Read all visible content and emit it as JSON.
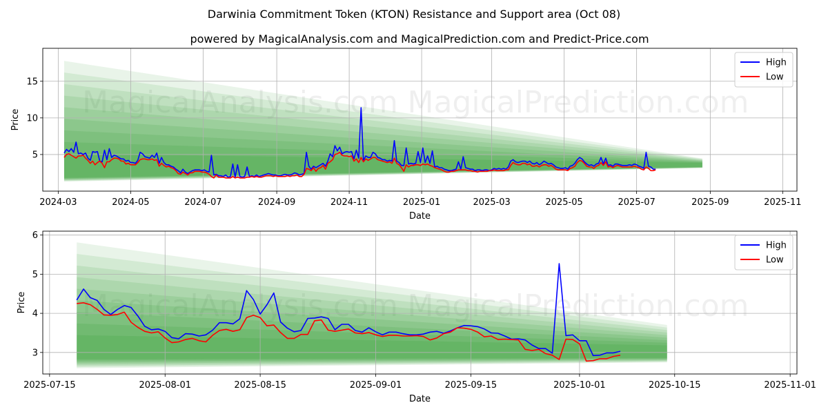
{
  "title": "Darwinia Commitment Token (KTON) Resistance and Support area (Oct 08)",
  "subtitle": "powered by MagicalAnalysis.com and MagicalPrediction.com and Predict-Price.com",
  "watermark": {
    "top_left": "MagicalAnalysis.com",
    "top_right": "MagicalPrediction.com",
    "bottom_left": "MagicalAnalysis.com",
    "bottom_right": "MagicalPrediction.com"
  },
  "colors": {
    "high": "#0000ff",
    "low": "#ff0000",
    "band": "#2e9b2e",
    "grid": "#b0b0b0"
  },
  "chart_data": [
    {
      "type": "line",
      "title": "",
      "xlabel": "Date",
      "ylabel": "Price",
      "legend": [
        "High",
        "Low"
      ],
      "legend_position": "top-right",
      "grid": true,
      "x_start": "2024-03-06",
      "x_step_days": 2,
      "x_range": [
        "2024-02-17",
        "2025-11-13"
      ],
      "ylim": [
        0,
        19.5
      ],
      "x_ticks": [
        "2024-03",
        "2024-05",
        "2024-07",
        "2024-09",
        "2024-11",
        "2025-01",
        "2025-03",
        "2025-05",
        "2025-07",
        "2025-09",
        "2025-11"
      ],
      "x_tick_dates": [
        "2024-03-01",
        "2024-05-01",
        "2024-07-01",
        "2024-09-01",
        "2024-11-01",
        "2025-01-01",
        "2025-03-01",
        "2025-05-01",
        "2025-07-01",
        "2025-09-01",
        "2025-11-01"
      ],
      "y_ticks": [
        5,
        10,
        15
      ],
      "series": [
        {
          "name": "High",
          "values": [
            5.2,
            5.7,
            5.4,
            5.8,
            5.3,
            6.7,
            5.1,
            5.2,
            5.0,
            5.2,
            4.5,
            4.2,
            5.4,
            5.3,
            5.4,
            4.1,
            4.0,
            5.6,
            4.3,
            5.8,
            4.6,
            4.9,
            4.8,
            4.6,
            4.4,
            4.4,
            4.1,
            4.2,
            3.9,
            3.9,
            3.8,
            4.2,
            5.3,
            5.1,
            4.7,
            4.6,
            4.5,
            4.9,
            4.6,
            5.2,
            3.8,
            4.6,
            3.9,
            3.6,
            3.6,
            3.4,
            3.3,
            3.0,
            2.8,
            2.5,
            3.0,
            2.6,
            2.4,
            2.6,
            2.8,
            2.9,
            2.9,
            2.9,
            2.8,
            2.9,
            2.7,
            2.6,
            4.9,
            2.2,
            2.3,
            2.1,
            2.1,
            2.0,
            2.2,
            1.9,
            2.0,
            3.7,
            1.9,
            3.6,
            2.0,
            1.9,
            2.0,
            3.3,
            2.0,
            2.1,
            2.0,
            2.2,
            2.0,
            2.1,
            2.2,
            2.3,
            2.4,
            2.3,
            2.2,
            2.2,
            2.1,
            2.1,
            2.2,
            2.3,
            2.2,
            2.2,
            2.3,
            2.5,
            2.4,
            2.2,
            2.3,
            2.4,
            5.3,
            3.4,
            3.0,
            3.4,
            3.2,
            3.4,
            3.6,
            3.8,
            3.4,
            4.1,
            5.1,
            4.7,
            6.2,
            5.5,
            6.0,
            5.1,
            5.3,
            5.4,
            5.3,
            5.4,
            4.4,
            5.6,
            4.5,
            11.4,
            4.2,
            4.8,
            4.6,
            4.6,
            5.3,
            5.1,
            4.6,
            4.5,
            4.3,
            4.3,
            4.1,
            4.2,
            4.1,
            6.9,
            4.1,
            3.9,
            3.5,
            3.5,
            5.9,
            3.7,
            3.8,
            3.7,
            3.8,
            5.4,
            3.9,
            5.9,
            3.9,
            4.8,
            3.8,
            5.5,
            3.3,
            3.4,
            3.2,
            3.2,
            3.0,
            2.9,
            2.8,
            2.8,
            2.9,
            3.0,
            4.0,
            3.0,
            4.7,
            3.2,
            3.1,
            3.0,
            3.0,
            2.8,
            2.9,
            2.9,
            2.8,
            2.9,
            2.9,
            2.8,
            2.9,
            3.1,
            3.0,
            3.1,
            3.0,
            3.1,
            3.0,
            3.3,
            4.1,
            4.3,
            4.0,
            3.9,
            4.0,
            4.1,
            4.1,
            3.9,
            4.1,
            3.8,
            3.7,
            3.9,
            3.6,
            3.8,
            4.1,
            3.9,
            3.7,
            3.8,
            3.6,
            3.3,
            3.2,
            3.1,
            3.1,
            3.2,
            3.0,
            3.4,
            3.5,
            3.8,
            4.3,
            4.6,
            4.4,
            4.0,
            3.7,
            3.5,
            3.6,
            3.4,
            3.7,
            3.8,
            4.6,
            3.7,
            4.5,
            3.5,
            3.6,
            3.4,
            3.7,
            3.7,
            3.6,
            3.5,
            3.5,
            3.5,
            3.6,
            3.5,
            3.7,
            3.6,
            3.4,
            3.3,
            3.1,
            5.3,
            3.4,
            3.3,
            3.0,
            3.0
          ]
        },
        {
          "name": "Low",
          "values": [
            4.6,
            5.0,
            5.1,
            4.9,
            4.7,
            4.5,
            4.8,
            4.8,
            4.9,
            4.5,
            4.2,
            3.8,
            4.1,
            3.6,
            3.9,
            4.1,
            3.8,
            3.2,
            4.0,
            4.0,
            4.3,
            4.5,
            4.5,
            4.4,
            4.1,
            4.1,
            3.7,
            3.8,
            3.6,
            3.6,
            3.6,
            3.9,
            4.3,
            4.4,
            4.4,
            4.3,
            4.3,
            4.4,
            4.2,
            4.3,
            3.4,
            3.8,
            3.5,
            3.3,
            3.4,
            3.2,
            3.1,
            2.8,
            2.4,
            2.3,
            2.6,
            2.4,
            2.2,
            2.5,
            2.5,
            2.7,
            2.7,
            2.7,
            2.6,
            2.6,
            2.5,
            2.3,
            2.0,
            1.8,
            2.2,
            1.9,
            1.9,
            1.9,
            1.8,
            1.8,
            1.8,
            2.0,
            1.8,
            1.9,
            1.8,
            1.8,
            1.8,
            1.9,
            1.9,
            2.0,
            1.9,
            2.0,
            1.9,
            1.9,
            2.0,
            2.1,
            2.1,
            2.1,
            2.0,
            2.1,
            2.0,
            2.0,
            2.0,
            2.0,
            2.1,
            2.0,
            2.1,
            2.1,
            2.2,
            2.0,
            2.0,
            2.3,
            3.1,
            3.0,
            2.8,
            3.2,
            2.7,
            3.1,
            3.2,
            3.5,
            3.0,
            3.8,
            4.0,
            4.3,
            5.0,
            5.1,
            5.3,
            4.9,
            4.8,
            4.8,
            4.7,
            4.8,
            4.1,
            4.4,
            3.9,
            4.6,
            4.0,
            4.4,
            4.2,
            4.4,
            4.6,
            4.6,
            4.3,
            4.2,
            4.1,
            4.0,
            3.9,
            4.0,
            3.8,
            4.5,
            3.8,
            3.6,
            3.2,
            2.7,
            3.6,
            3.3,
            3.5,
            3.5,
            3.6,
            3.6,
            3.5,
            3.7,
            3.6,
            3.7,
            3.5,
            3.4,
            3.2,
            3.1,
            3.0,
            2.9,
            2.7,
            2.6,
            2.6,
            2.7,
            2.7,
            2.8,
            2.9,
            2.9,
            2.9,
            2.9,
            2.8,
            2.8,
            2.7,
            2.7,
            2.6,
            2.7,
            2.7,
            2.7,
            2.7,
            2.8,
            2.8,
            2.9,
            2.8,
            2.8,
            2.8,
            2.8,
            2.9,
            2.9,
            3.5,
            3.9,
            3.7,
            3.6,
            3.6,
            3.8,
            3.8,
            3.6,
            3.7,
            3.4,
            3.4,
            3.5,
            3.3,
            3.5,
            3.6,
            3.6,
            3.4,
            3.5,
            3.3,
            3.0,
            2.9,
            2.9,
            2.9,
            2.9,
            2.8,
            3.1,
            3.2,
            3.4,
            3.9,
            4.2,
            4.1,
            3.8,
            3.4,
            3.3,
            3.3,
            3.1,
            3.4,
            3.5,
            3.9,
            3.5,
            4.0,
            3.3,
            3.4,
            3.2,
            3.4,
            3.5,
            3.4,
            3.3,
            3.3,
            3.3,
            3.3,
            3.3,
            3.4,
            3.3,
            3.2,
            3.0,
            2.9,
            3.3,
            3.1,
            2.8,
            2.8,
            2.9
          ]
        }
      ]
    },
    {
      "type": "line",
      "title": "",
      "xlabel": "Date",
      "ylabel": "Price",
      "legend": [
        "High",
        "Low"
      ],
      "legend_position": "top-right",
      "grid": true,
      "x_start": "2025-07-19",
      "x_step_days": 1,
      "x_range": [
        "2025-07-14",
        "2025-11-02"
      ],
      "ylim": [
        2.45,
        6.1
      ],
      "x_ticks": [
        "2025-07-15",
        "2025-08-01",
        "2025-08-15",
        "2025-09-01",
        "2025-09-15",
        "2025-10-01",
        "2025-10-15",
        "2025-11-01"
      ],
      "x_tick_dates": [
        "2025-07-15",
        "2025-08-01",
        "2025-08-15",
        "2025-09-01",
        "2025-09-15",
        "2025-10-01",
        "2025-10-15",
        "2025-11-01"
      ],
      "y_ticks": [
        3,
        4,
        5,
        6
      ],
      "series": [
        {
          "name": "High",
          "values": [
            4.34,
            4.62,
            4.4,
            4.33,
            4.1,
            3.97,
            4.1,
            4.2,
            4.15,
            3.93,
            3.67,
            3.58,
            3.6,
            3.54,
            3.38,
            3.35,
            3.48,
            3.47,
            3.42,
            3.45,
            3.57,
            3.76,
            3.76,
            3.73,
            3.86,
            4.58,
            4.35,
            3.98,
            4.22,
            4.52,
            3.78,
            3.62,
            3.53,
            3.56,
            3.87,
            3.88,
            3.91,
            3.87,
            3.58,
            3.72,
            3.72,
            3.56,
            3.52,
            3.63,
            3.53,
            3.45,
            3.52,
            3.52,
            3.48,
            3.45,
            3.45,
            3.47,
            3.52,
            3.54,
            3.49,
            3.55,
            3.63,
            3.69,
            3.68,
            3.66,
            3.6,
            3.5,
            3.49,
            3.42,
            3.34,
            3.35,
            3.32,
            3.19,
            3.1,
            3.1,
            2.98,
            5.27,
            3.43,
            3.45,
            3.3,
            3.3,
            2.92,
            2.93,
            2.99,
            2.99,
            3.03
          ]
        },
        {
          "name": "Low",
          "values": [
            4.25,
            4.27,
            4.22,
            4.1,
            3.96,
            3.95,
            3.97,
            4.03,
            3.77,
            3.64,
            3.54,
            3.5,
            3.53,
            3.37,
            3.25,
            3.27,
            3.33,
            3.36,
            3.3,
            3.27,
            3.44,
            3.56,
            3.59,
            3.54,
            3.58,
            3.89,
            3.95,
            3.89,
            3.68,
            3.7,
            3.51,
            3.36,
            3.36,
            3.46,
            3.46,
            3.81,
            3.83,
            3.57,
            3.54,
            3.57,
            3.6,
            3.5,
            3.48,
            3.51,
            3.45,
            3.41,
            3.44,
            3.44,
            3.42,
            3.42,
            3.43,
            3.41,
            3.32,
            3.37,
            3.48,
            3.52,
            3.63,
            3.62,
            3.59,
            3.52,
            3.4,
            3.42,
            3.33,
            3.34,
            3.33,
            3.32,
            3.08,
            3.05,
            3.08,
            2.97,
            2.93,
            2.82,
            3.34,
            3.33,
            3.22,
            2.78,
            2.79,
            2.84,
            2.84,
            2.9,
            2.93
          ]
        }
      ]
    }
  ]
}
